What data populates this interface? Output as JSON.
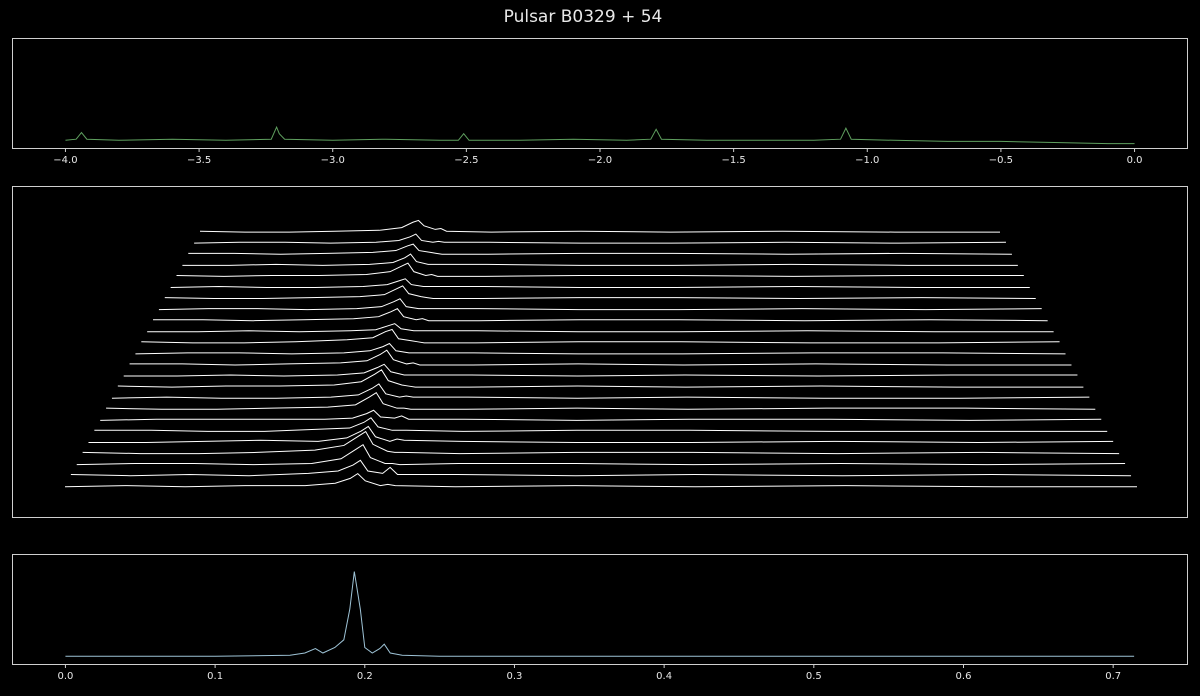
{
  "title": "Pulsar B0329 + 54",
  "chart_data": [
    {
      "type": "line",
      "color": "#5fa05f",
      "x": [
        -4.0,
        -3.96,
        -3.94,
        -3.92,
        -3.8,
        -3.6,
        -3.4,
        -3.23,
        -3.21,
        -3.2,
        -3.18,
        -3.0,
        -2.8,
        -2.6,
        -2.53,
        -2.51,
        -2.49,
        -2.3,
        -2.1,
        -1.9,
        -1.81,
        -1.79,
        -1.77,
        -1.6,
        -1.4,
        -1.2,
        -1.1,
        -1.08,
        -1.06,
        -0.9,
        -0.7,
        -0.5,
        -0.3,
        -0.1,
        0.0
      ],
      "values": [
        0.07,
        0.08,
        0.14,
        0.08,
        0.07,
        0.08,
        0.07,
        0.08,
        0.19,
        0.13,
        0.08,
        0.07,
        0.08,
        0.07,
        0.07,
        0.13,
        0.07,
        0.07,
        0.08,
        0.07,
        0.08,
        0.17,
        0.08,
        0.07,
        0.07,
        0.07,
        0.08,
        0.18,
        0.08,
        0.07,
        0.06,
        0.06,
        0.05,
        0.04,
        0.04
      ],
      "xlim": [
        -4.2,
        0.2
      ],
      "ylim": [
        0,
        1
      ],
      "xticks": [
        {
          "value": -4,
          "label": "−4.0"
        },
        {
          "value": -3.5,
          "label": "−3.5"
        },
        {
          "value": -3,
          "label": "−3.0"
        },
        {
          "value": -2.5,
          "label": "−2.5"
        },
        {
          "value": -2,
          "label": "−2.0"
        },
        {
          "value": -1.5,
          "label": "−1.5"
        },
        {
          "value": -1,
          "label": "−1.0"
        },
        {
          "value": -0.5,
          "label": "−0.5"
        },
        {
          "value": 0,
          "label": "0.0"
        }
      ]
    },
    {
      "type": "ridgeline",
      "color": "#ffffff",
      "x": [
        0,
        0.04,
        0.08,
        0.12,
        0.16,
        0.18,
        0.19,
        0.195,
        0.2,
        0.21,
        0.215,
        0.22,
        0.26,
        0.34,
        0.42,
        0.52,
        0.62,
        0.714
      ],
      "series": [
        {
          "values": [
            1,
            2,
            1,
            2,
            2,
            4,
            8,
            12,
            6,
            2,
            3,
            2,
            1,
            2,
            1,
            2,
            1,
            1
          ]
        },
        {
          "values": [
            2,
            1,
            2,
            1,
            3,
            5,
            10,
            14,
            5,
            3,
            8,
            2,
            2,
            1,
            2,
            1,
            2,
            1
          ]
        },
        {
          "values": [
            1,
            2,
            2,
            1,
            2,
            6,
            14,
            18,
            7,
            2,
            2,
            1,
            2,
            2,
            1,
            2,
            1,
            2
          ]
        },
        {
          "values": [
            2,
            1,
            1,
            2,
            4,
            8,
            16,
            20,
            9,
            3,
            2,
            2,
            1,
            2,
            2,
            1,
            2,
            1
          ]
        },
        {
          "values": [
            1,
            1,
            2,
            3,
            2,
            5,
            11,
            15,
            6,
            2,
            4,
            3,
            2,
            1,
            1,
            2,
            1,
            2
          ]
        },
        {
          "values": [
            2,
            2,
            1,
            1,
            3,
            4,
            9,
            13,
            5,
            2,
            2,
            2,
            1,
            2,
            2,
            1,
            1,
            1
          ]
        },
        {
          "values": [
            1,
            2,
            2,
            2,
            2,
            3,
            7,
            10,
            4,
            3,
            5,
            2,
            2,
            1,
            2,
            2,
            1,
            2
          ]
        },
        {
          "values": [
            2,
            1,
            1,
            2,
            3,
            5,
            12,
            16,
            6,
            2,
            2,
            1,
            1,
            2,
            1,
            2,
            2,
            1
          ]
        },
        {
          "values": [
            1,
            2,
            1,
            1,
            2,
            4,
            10,
            14,
            5,
            2,
            3,
            2,
            2,
            1,
            2,
            1,
            1,
            2
          ]
        },
        {
          "values": [
            2,
            1,
            2,
            2,
            3,
            6,
            13,
            17,
            7,
            3,
            2,
            1,
            1,
            2,
            1,
            2,
            1,
            1
          ]
        },
        {
          "values": [
            1,
            1,
            2,
            1,
            2,
            4,
            9,
            12,
            5,
            2,
            2,
            2,
            2,
            1,
            2,
            1,
            2,
            2
          ]
        },
        {
          "values": [
            2,
            2,
            1,
            2,
            3,
            5,
            11,
            15,
            6,
            2,
            3,
            1,
            1,
            2,
            1,
            2,
            1,
            1
          ]
        },
        {
          "values": [
            1,
            2,
            2,
            1,
            2,
            4,
            8,
            11,
            4,
            2,
            2,
            2,
            2,
            1,
            1,
            2,
            2,
            1
          ]
        },
        {
          "values": [
            2,
            1,
            1,
            2,
            4,
            6,
            12,
            14,
            5,
            3,
            2,
            1,
            1,
            2,
            2,
            1,
            1,
            2
          ]
        },
        {
          "values": [
            1,
            1,
            2,
            1,
            2,
            3,
            7,
            9,
            4,
            2,
            2,
            2,
            2,
            1,
            1,
            2,
            1,
            1
          ]
        },
        {
          "values": [
            2,
            2,
            1,
            2,
            3,
            5,
            10,
            13,
            5,
            2,
            3,
            1,
            1,
            2,
            2,
            1,
            2,
            1
          ]
        },
        {
          "values": [
            1,
            2,
            2,
            1,
            2,
            4,
            9,
            12,
            4,
            2,
            2,
            2,
            2,
            1,
            1,
            2,
            1,
            2
          ]
        },
        {
          "values": [
            2,
            1,
            1,
            2,
            3,
            5,
            11,
            14,
            6,
            3,
            2,
            1,
            1,
            2,
            2,
            1,
            2,
            1
          ]
        },
        {
          "values": [
            1,
            2,
            1,
            1,
            2,
            4,
            8,
            10,
            4,
            2,
            2,
            2,
            2,
            1,
            1,
            2,
            1,
            1
          ]
        },
        {
          "values": [
            2,
            1,
            2,
            2,
            3,
            6,
            12,
            15,
            6,
            2,
            3,
            1,
            1,
            2,
            2,
            1,
            2,
            2
          ]
        },
        {
          "values": [
            1,
            1,
            2,
            1,
            2,
            4,
            9,
            13,
            5,
            2,
            2,
            2,
            2,
            1,
            1,
            2,
            1,
            1
          ]
        },
        {
          "values": [
            2,
            2,
            1,
            2,
            3,
            5,
            10,
            12,
            5,
            3,
            2,
            1,
            1,
            2,
            2,
            1,
            2,
            1
          ]
        },
        {
          "values": [
            1,
            2,
            2,
            1,
            2,
            4,
            8,
            11,
            4,
            2,
            3,
            2,
            2,
            1,
            1,
            2,
            1,
            2
          ]
        },
        {
          "values": [
            2,
            1,
            1,
            2,
            3,
            6,
            12,
            14,
            8,
            4,
            5,
            2,
            1,
            2,
            1,
            2,
            1,
            1
          ]
        }
      ]
    },
    {
      "type": "line",
      "color": "#9ec3d6",
      "x": [
        0,
        0.05,
        0.1,
        0.15,
        0.16,
        0.167,
        0.172,
        0.18,
        0.186,
        0.19,
        0.193,
        0.197,
        0.2,
        0.205,
        0.21,
        0.213,
        0.217,
        0.225,
        0.25,
        0.3,
        0.4,
        0.5,
        0.6,
        0.7,
        0.714
      ],
      "values": [
        0.07,
        0.07,
        0.07,
        0.08,
        0.1,
        0.14,
        0.1,
        0.15,
        0.22,
        0.5,
        0.84,
        0.5,
        0.15,
        0.1,
        0.14,
        0.18,
        0.1,
        0.08,
        0.07,
        0.07,
        0.07,
        0.07,
        0.07,
        0.07,
        0.07
      ],
      "xlim": [
        -0.0357,
        0.75
      ],
      "ylim": [
        0,
        1
      ],
      "xticks": [
        {
          "value": 0,
          "label": "0.0"
        },
        0.1,
        0.2,
        0.3,
        0.4,
        0.5,
        0.6,
        0.7
      ]
    }
  ]
}
